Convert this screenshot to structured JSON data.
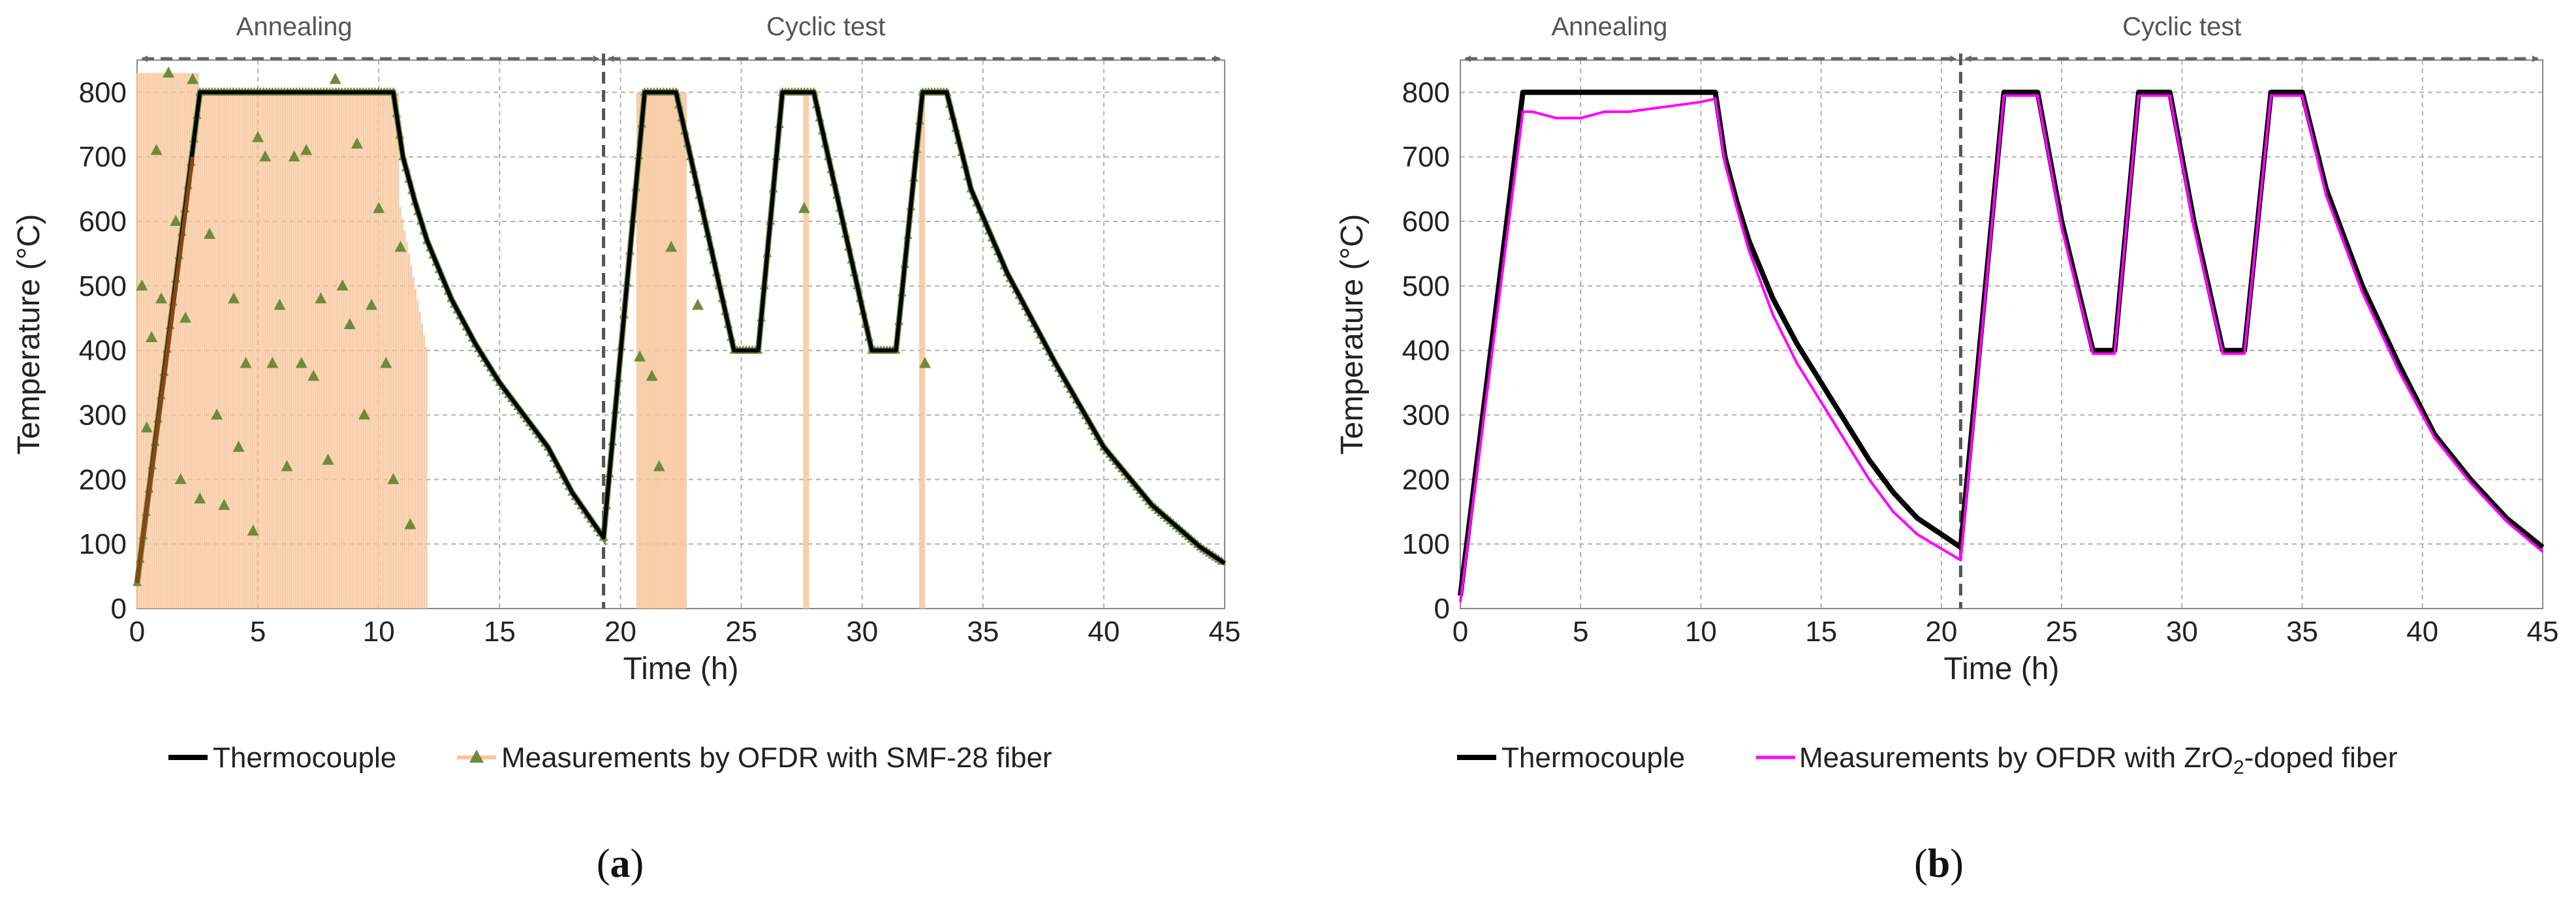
{
  "figure": {
    "panels": [
      {
        "label_open": "(",
        "label_letter": "a",
        "label_close": ")",
        "legend": [
          {
            "label": "Thermocouple",
            "color": "#000000",
            "style": "line"
          },
          {
            "label": "Measurements by OFDR with SMF-28 fiber",
            "color": "#f7c59a",
            "marker_color": "#6e8b3d",
            "style": "line-triangle"
          }
        ],
        "phases": [
          "Annealing",
          "Cyclic test"
        ]
      },
      {
        "label_open": "(",
        "label_letter": "b",
        "label_close": ")",
        "legend": [
          {
            "label": "Thermocouple",
            "color": "#000000",
            "style": "line"
          },
          {
            "label_pre": "Measurements by OFDR with ZrO",
            "label_sub1": "2",
            "label_post": "-doped fiber",
            "color": "#ff00ff",
            "style": "line"
          }
        ],
        "phases": [
          "Annealing",
          "Cyclic test"
        ]
      }
    ]
  },
  "chart_data": [
    {
      "type": "line",
      "title": "",
      "xlabel": "Time (h)",
      "ylabel": "Temperature (°C)",
      "xlim": [
        0,
        45
      ],
      "ylim": [
        0,
        850
      ],
      "xticks": [
        0,
        5,
        10,
        15,
        20,
        25,
        30,
        35,
        40,
        45
      ],
      "yticks": [
        0,
        100,
        200,
        300,
        400,
        500,
        600,
        700,
        800
      ],
      "phase_divider_x": 19.3,
      "phase_labels": [
        {
          "text": "Annealing",
          "x": 6.5
        },
        {
          "text": "Cyclic test",
          "x": 28.5
        }
      ],
      "thermocouple": {
        "name": "Thermocouple",
        "color": "#000000",
        "points": [
          [
            0,
            40
          ],
          [
            2.6,
            800
          ],
          [
            10.6,
            800
          ],
          [
            11,
            700
          ],
          [
            11.5,
            630
          ],
          [
            12,
            570
          ],
          [
            13,
            480
          ],
          [
            14,
            410
          ],
          [
            15,
            350
          ],
          [
            16,
            300
          ],
          [
            17,
            250
          ],
          [
            18,
            180
          ],
          [
            19.3,
            110
          ],
          [
            21,
            800
          ],
          [
            22.3,
            800
          ],
          [
            23.5,
            600
          ],
          [
            24.7,
            400
          ],
          [
            25.7,
            400
          ],
          [
            26.7,
            800
          ],
          [
            28,
            800
          ],
          [
            29.2,
            600
          ],
          [
            30.4,
            400
          ],
          [
            31.4,
            400
          ],
          [
            32.5,
            800
          ],
          [
            33.5,
            800
          ],
          [
            34.5,
            650
          ],
          [
            36,
            520
          ],
          [
            38,
            380
          ],
          [
            40,
            250
          ],
          [
            42,
            160
          ],
          [
            44,
            95
          ],
          [
            45,
            70
          ]
        ]
      },
      "ofdr_smf28": {
        "name": "Measurements by OFDR with SMF-28 fiber",
        "line_color": "#f7c59a",
        "marker_color": "#6e8b3d",
        "smooth_points": [
          [
            0,
            40
          ],
          [
            2.6,
            800
          ],
          [
            10.6,
            800
          ],
          [
            11,
            700
          ],
          [
            11.5,
            630
          ],
          [
            12,
            570
          ],
          [
            13,
            480
          ],
          [
            14,
            410
          ],
          [
            15,
            350
          ],
          [
            16,
            300
          ],
          [
            17,
            250
          ],
          [
            18,
            180
          ],
          [
            19.3,
            110
          ],
          [
            21,
            800
          ],
          [
            22.3,
            800
          ],
          [
            23.5,
            600
          ],
          [
            24.7,
            400
          ],
          [
            25.7,
            400
          ],
          [
            26.7,
            800
          ],
          [
            28,
            800
          ],
          [
            29.2,
            600
          ],
          [
            30.4,
            400
          ],
          [
            31.4,
            400
          ],
          [
            32.5,
            800
          ],
          [
            33.5,
            800
          ],
          [
            34.5,
            650
          ],
          [
            36,
            520
          ],
          [
            38,
            380
          ],
          [
            40,
            250
          ],
          [
            42,
            160
          ],
          [
            44,
            95
          ],
          [
            45,
            70
          ]
        ],
        "noisy_markers": [
          [
            0.2,
            500
          ],
          [
            0.4,
            280
          ],
          [
            0.6,
            420
          ],
          [
            0.8,
            710
          ],
          [
            1.0,
            480
          ],
          [
            1.3,
            830
          ],
          [
            1.6,
            600
          ],
          [
            1.8,
            200
          ],
          [
            2.0,
            450
          ],
          [
            2.3,
            820
          ],
          [
            2.6,
            170
          ],
          [
            3.0,
            580
          ],
          [
            3.3,
            300
          ],
          [
            3.6,
            160
          ],
          [
            4.0,
            480
          ],
          [
            4.2,
            250
          ],
          [
            4.5,
            380
          ],
          [
            4.8,
            120
          ],
          [
            5.0,
            730
          ],
          [
            5.3,
            700
          ],
          [
            5.6,
            380
          ],
          [
            5.9,
            470
          ],
          [
            6.2,
            220
          ],
          [
            6.5,
            700
          ],
          [
            6.8,
            380
          ],
          [
            7.0,
            710
          ],
          [
            7.3,
            360
          ],
          [
            7.6,
            480
          ],
          [
            7.9,
            230
          ],
          [
            8.2,
            820
          ],
          [
            8.5,
            500
          ],
          [
            8.8,
            440
          ],
          [
            9.1,
            720
          ],
          [
            9.4,
            300
          ],
          [
            9.7,
            470
          ],
          [
            10.0,
            620
          ],
          [
            10.3,
            380
          ],
          [
            10.6,
            200
          ],
          [
            10.9,
            560
          ],
          [
            11.3,
            130
          ],
          [
            20.8,
            390
          ],
          [
            21.3,
            360
          ],
          [
            21.6,
            220
          ],
          [
            22.1,
            560
          ],
          [
            23.2,
            470
          ],
          [
            27.6,
            620
          ],
          [
            32.6,
            380
          ]
        ],
        "spike_ranges": [
          [
            0,
            12
          ],
          [
            20.7,
            22.7
          ],
          [
            27.6,
            27.8
          ],
          [
            32.4,
            32.6
          ]
        ]
      }
    },
    {
      "type": "line",
      "title": "",
      "xlabel": "Time (h)",
      "ylabel": "Temperature (°C)",
      "xlim": [
        0,
        45
      ],
      "ylim": [
        0,
        850
      ],
      "xticks": [
        0,
        5,
        10,
        15,
        20,
        25,
        30,
        35,
        40,
        45
      ],
      "yticks": [
        0,
        100,
        200,
        300,
        400,
        500,
        600,
        700,
        800
      ],
      "phase_divider_x": 20.8,
      "phase_labels": [
        {
          "text": "Annealing",
          "x": 6.2
        },
        {
          "text": "Cyclic test",
          "x": 30
        }
      ],
      "thermocouple": {
        "name": "Thermocouple",
        "color": "#000000",
        "points": [
          [
            0,
            20
          ],
          [
            2.6,
            800
          ],
          [
            10.6,
            800
          ],
          [
            11,
            700
          ],
          [
            11.5,
            630
          ],
          [
            12,
            570
          ],
          [
            13,
            480
          ],
          [
            14,
            410
          ],
          [
            15,
            350
          ],
          [
            16,
            290
          ],
          [
            17,
            230
          ],
          [
            18,
            180
          ],
          [
            19,
            140
          ],
          [
            20.8,
            95
          ],
          [
            22.6,
            800
          ],
          [
            24,
            800
          ],
          [
            25,
            600
          ],
          [
            26.3,
            400
          ],
          [
            27.2,
            400
          ],
          [
            28.2,
            800
          ],
          [
            29.5,
            800
          ],
          [
            30.5,
            600
          ],
          [
            31.7,
            400
          ],
          [
            32.6,
            400
          ],
          [
            33.7,
            800
          ],
          [
            35,
            800
          ],
          [
            36,
            650
          ],
          [
            37.5,
            500
          ],
          [
            39,
            380
          ],
          [
            40.5,
            270
          ],
          [
            42,
            200
          ],
          [
            43.5,
            140
          ],
          [
            45,
            95
          ]
        ]
      },
      "ofdr_zro2": {
        "name": "Measurements by OFDR with ZrO2-doped fiber",
        "color": "#ff00ff",
        "points": [
          [
            0,
            10
          ],
          [
            2.6,
            770
          ],
          [
            3,
            770
          ],
          [
            4,
            760
          ],
          [
            5,
            760
          ],
          [
            6,
            770
          ],
          [
            7,
            770
          ],
          [
            8,
            775
          ],
          [
            9,
            780
          ],
          [
            10,
            785
          ],
          [
            10.6,
            790
          ],
          [
            11,
            690
          ],
          [
            11.5,
            620
          ],
          [
            12,
            555
          ],
          [
            13,
            455
          ],
          [
            14,
            380
          ],
          [
            15,
            320
          ],
          [
            16,
            260
          ],
          [
            17,
            200
          ],
          [
            18,
            150
          ],
          [
            19,
            115
          ],
          [
            20.8,
            75
          ],
          [
            22.6,
            795
          ],
          [
            24,
            795
          ],
          [
            25,
            590
          ],
          [
            26.3,
            395
          ],
          [
            27.2,
            395
          ],
          [
            28.2,
            795
          ],
          [
            29.5,
            795
          ],
          [
            30.5,
            590
          ],
          [
            31.7,
            395
          ],
          [
            32.6,
            395
          ],
          [
            33.7,
            795
          ],
          [
            35,
            795
          ],
          [
            36,
            640
          ],
          [
            37.5,
            490
          ],
          [
            39,
            370
          ],
          [
            40.5,
            265
          ],
          [
            42,
            195
          ],
          [
            43.5,
            135
          ],
          [
            45,
            88
          ]
        ]
      }
    }
  ]
}
